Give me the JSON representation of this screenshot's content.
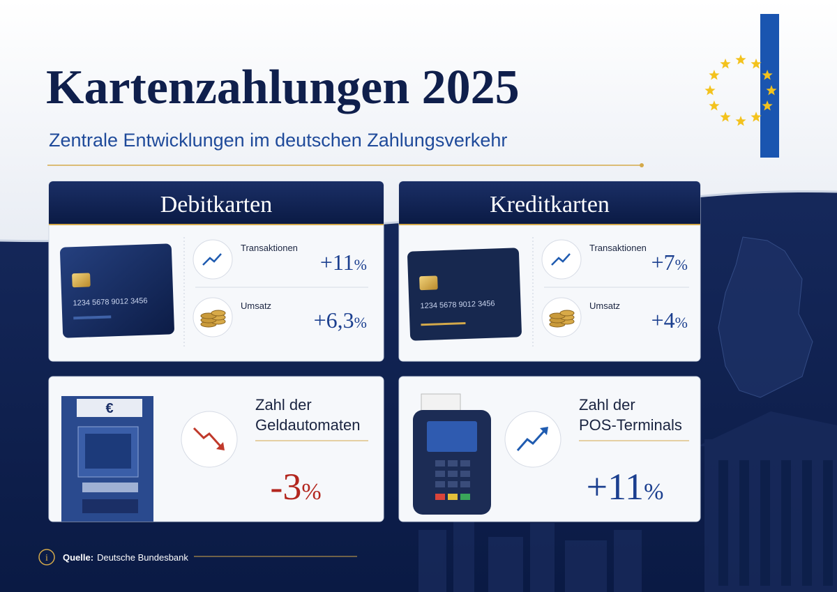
{
  "header": {
    "title": "Kartenzahlungen 2025",
    "subtitle": "Zentrale Entwicklungen im deutschen Zahlungsverkehr"
  },
  "cards": [
    {
      "title": "Debitkarten",
      "card_number": "1234 5678 9012 3456",
      "rows": [
        {
          "label": "Transaktionen",
          "number": "+11",
          "unit": "%"
        },
        {
          "label": "Umsatz",
          "number": "+6,3",
          "unit": "%"
        }
      ]
    },
    {
      "title": "Kreditkarten",
      "card_number": "1234 5678 9012 3456",
      "rows": [
        {
          "label": "Transaktionen",
          "number": "+7",
          "unit": "%"
        },
        {
          "label": "Umsatz",
          "number": "+4",
          "unit": "%"
        }
      ]
    }
  ],
  "metrics": [
    {
      "icon_label": "€",
      "label_lines": [
        "Zahl der",
        "Geldautomaten"
      ],
      "number": "-3",
      "unit": "%"
    },
    {
      "label_lines": [
        "Zahl der",
        "POS-Terminals"
      ],
      "number": "+11",
      "unit": "%"
    }
  ],
  "footer": {
    "source_label": "Quelle:",
    "source": "Deutsche Bundesbank"
  }
}
